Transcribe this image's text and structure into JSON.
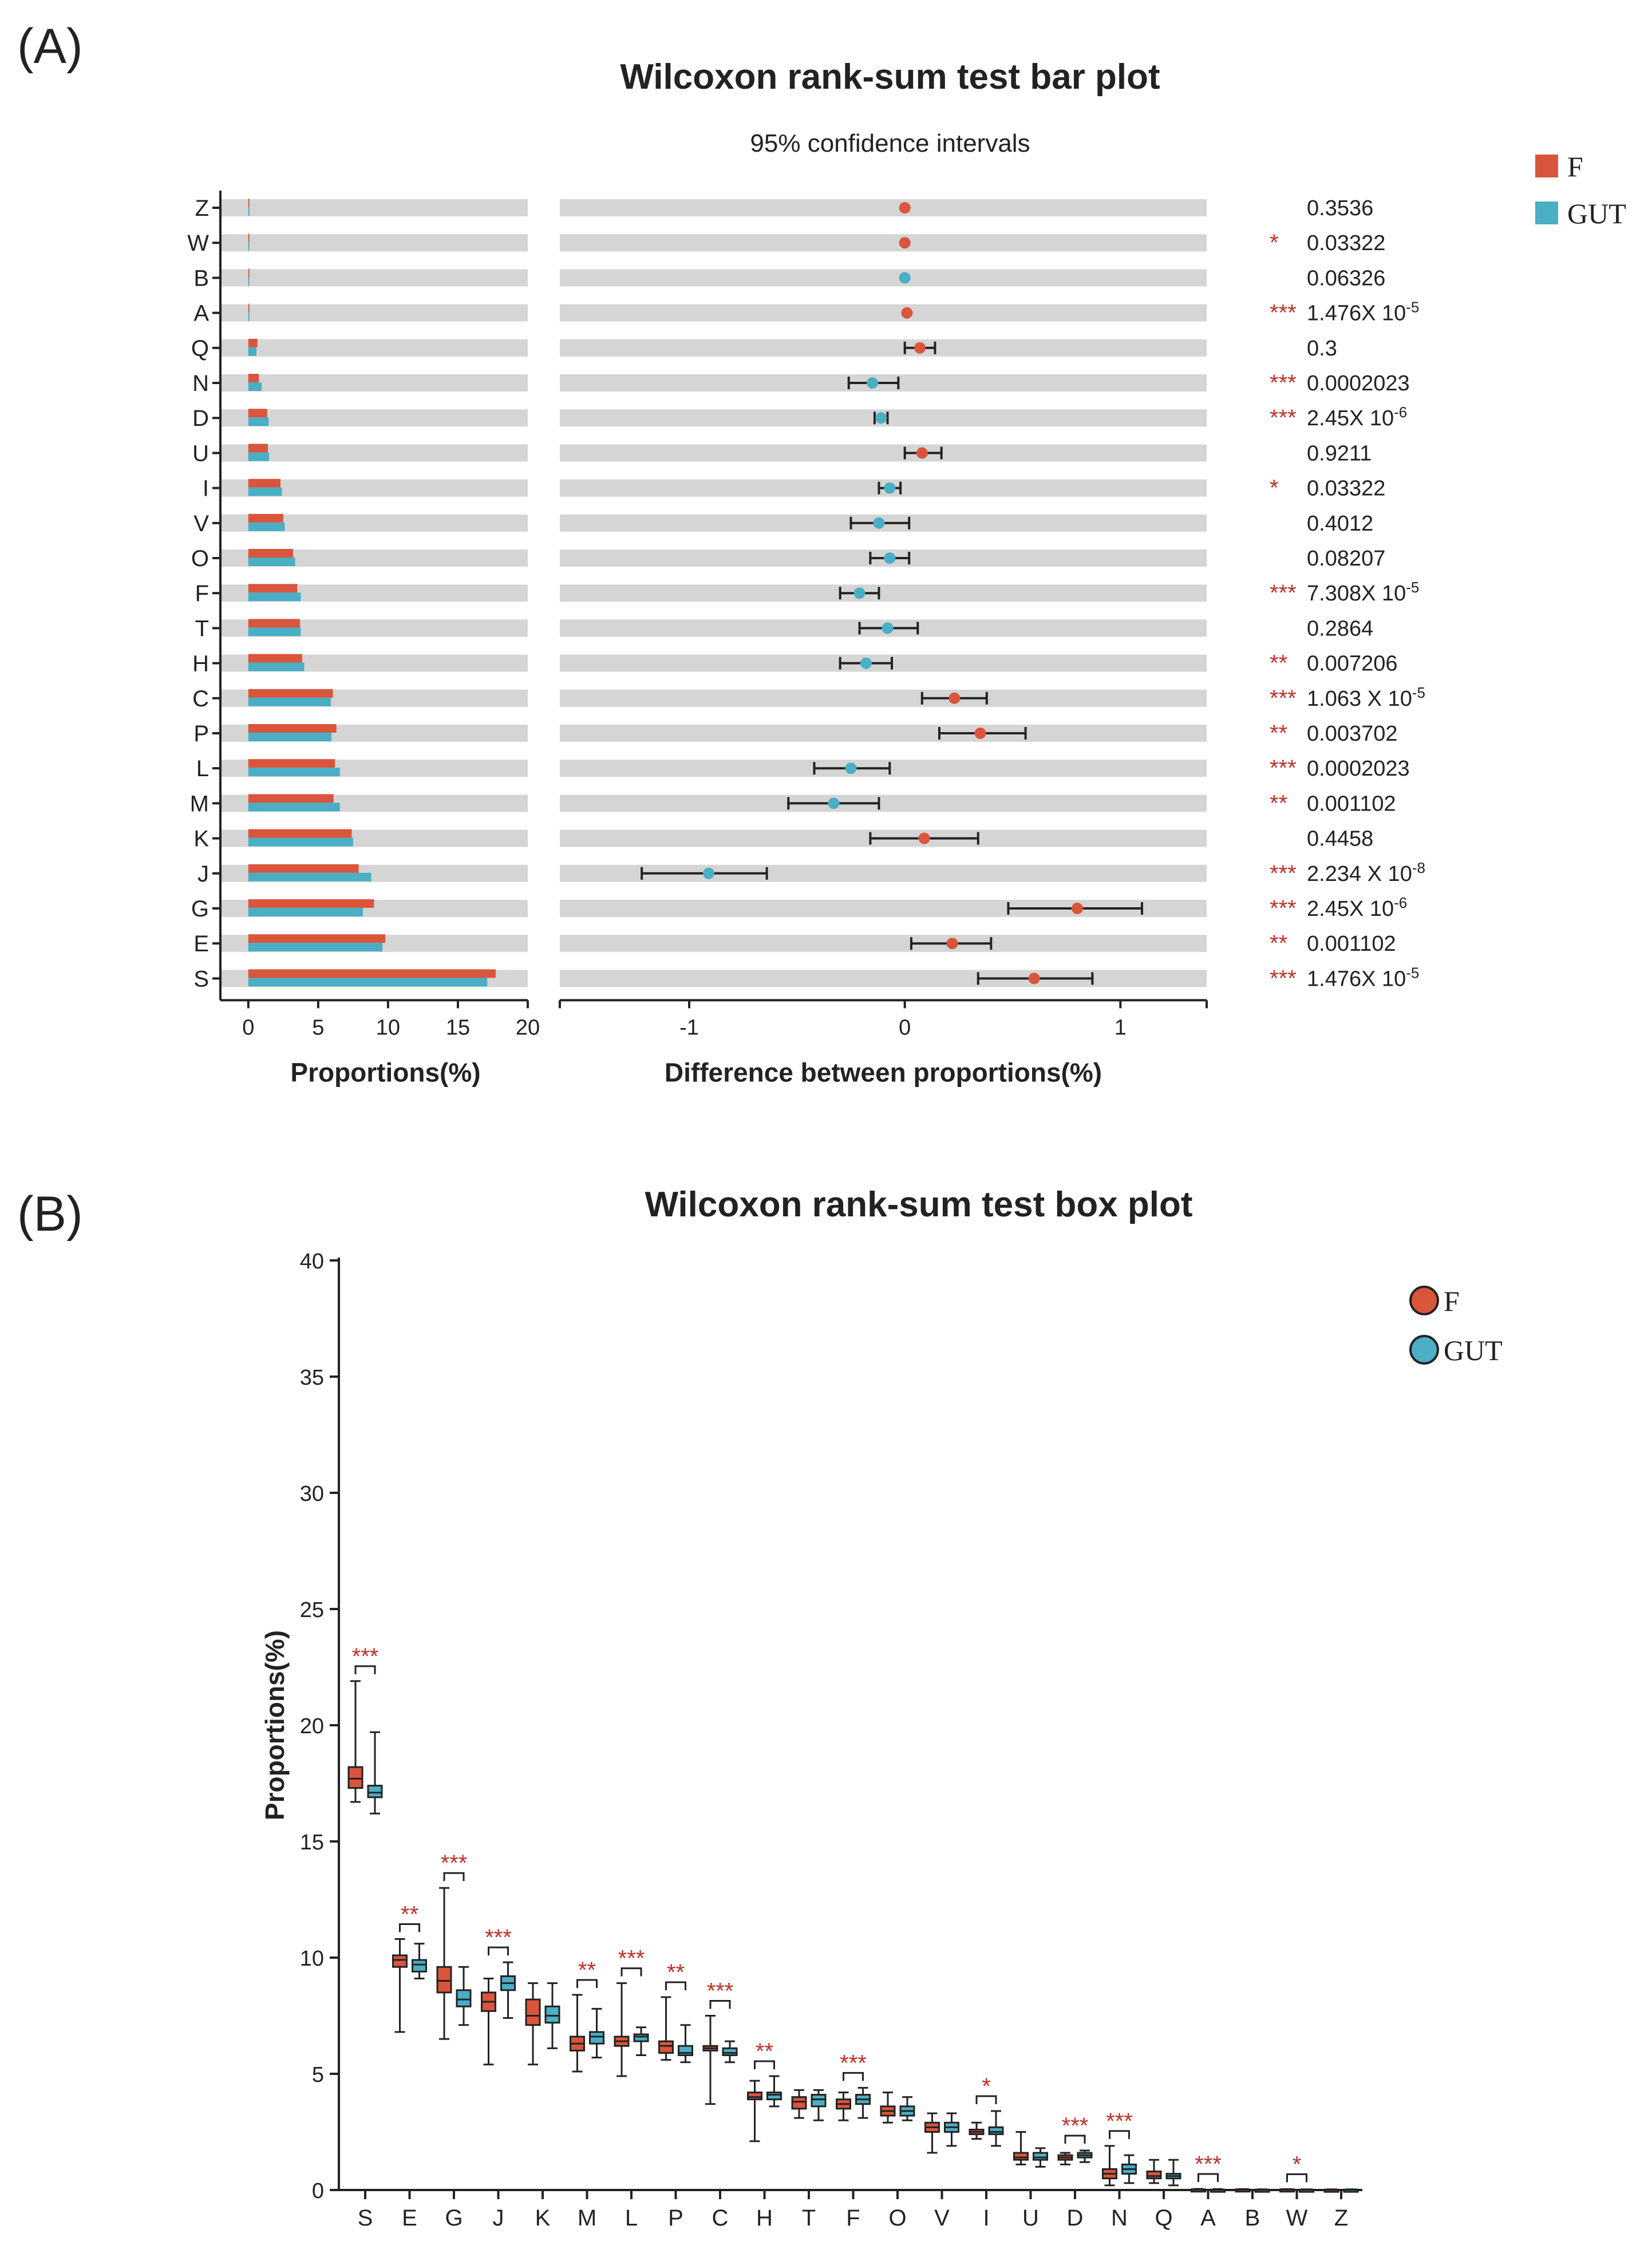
{
  "colors": {
    "F": "#d9553c",
    "GUT": "#4aaec4",
    "track": "#d5d5d5",
    "star": "#c0302a"
  },
  "panelA": {
    "label": "(A)",
    "title": "Wilcoxon rank-sum test bar plot",
    "subtitle": "95% confidence intervals",
    "legend": [
      "F",
      "GUT"
    ]
  },
  "panelB": {
    "label": "(B)",
    "title": "Wilcoxon rank-sum test box plot",
    "legend": [
      "F",
      "GUT"
    ]
  },
  "chart_data": [
    {
      "type": "bar",
      "xlabel": "Proportions(%)",
      "xlim": [
        -2,
        20
      ],
      "xticks": [
        0,
        5,
        10,
        15,
        20
      ],
      "categories": [
        "Z",
        "W",
        "B",
        "A",
        "Q",
        "N",
        "D",
        "U",
        "I",
        "V",
        "O",
        "F",
        "T",
        "H",
        "C",
        "P",
        "L",
        "M",
        "K",
        "J",
        "G",
        "E",
        "S"
      ],
      "series": [
        {
          "name": "F",
          "values": [
            0.02,
            0.03,
            0.05,
            0.06,
            0.65,
            0.75,
            1.35,
            1.4,
            2.3,
            2.5,
            3.2,
            3.5,
            3.7,
            3.85,
            6.05,
            6.3,
            6.2,
            6.1,
            7.4,
            7.9,
            9.0,
            9.8,
            17.7
          ]
        },
        {
          "name": "GUT",
          "values": [
            0.01,
            0.02,
            0.04,
            0.04,
            0.58,
            0.95,
            1.45,
            1.48,
            2.4,
            2.6,
            3.35,
            3.75,
            3.75,
            4.0,
            5.9,
            5.95,
            6.55,
            6.55,
            7.5,
            8.8,
            8.2,
            9.6,
            17.1
          ]
        }
      ]
    },
    {
      "type": "scatter",
      "xlabel": "Difference between proportions(%)",
      "xlim": [
        -1.6,
        1.4
      ],
      "xticks": [
        -1,
        0,
        1
      ],
      "categories": [
        "Z",
        "W",
        "B",
        "A",
        "Q",
        "N",
        "D",
        "U",
        "I",
        "V",
        "O",
        "F",
        "T",
        "H",
        "C",
        "P",
        "L",
        "M",
        "K",
        "J",
        "G",
        "E",
        "S"
      ],
      "points": [
        {
          "d": 0.0,
          "lo": 0.0,
          "hi": 0.0,
          "g": "F"
        },
        {
          "d": 0.0,
          "lo": 0.0,
          "hi": 0.0,
          "g": "F"
        },
        {
          "d": 0.0,
          "lo": 0.0,
          "hi": 0.0,
          "g": "GUT"
        },
        {
          "d": 0.01,
          "lo": 0.01,
          "hi": 0.01,
          "g": "F"
        },
        {
          "d": 0.07,
          "lo": 0.0,
          "hi": 0.14,
          "g": "F"
        },
        {
          "d": -0.15,
          "lo": -0.26,
          "hi": -0.03,
          "g": "GUT"
        },
        {
          "d": -0.11,
          "lo": -0.14,
          "hi": -0.08,
          "g": "GUT"
        },
        {
          "d": 0.08,
          "lo": 0.0,
          "hi": 0.17,
          "g": "F"
        },
        {
          "d": -0.07,
          "lo": -0.12,
          "hi": -0.02,
          "g": "GUT"
        },
        {
          "d": -0.12,
          "lo": -0.25,
          "hi": 0.02,
          "g": "GUT"
        },
        {
          "d": -0.07,
          "lo": -0.16,
          "hi": 0.02,
          "g": "GUT"
        },
        {
          "d": -0.21,
          "lo": -0.3,
          "hi": -0.12,
          "g": "GUT"
        },
        {
          "d": -0.08,
          "lo": -0.21,
          "hi": 0.06,
          "g": "GUT"
        },
        {
          "d": -0.18,
          "lo": -0.3,
          "hi": -0.06,
          "g": "GUT"
        },
        {
          "d": 0.23,
          "lo": 0.08,
          "hi": 0.38,
          "g": "F"
        },
        {
          "d": 0.35,
          "lo": 0.16,
          "hi": 0.56,
          "g": "F"
        },
        {
          "d": -0.25,
          "lo": -0.42,
          "hi": -0.07,
          "g": "GUT"
        },
        {
          "d": -0.33,
          "lo": -0.54,
          "hi": -0.12,
          "g": "GUT"
        },
        {
          "d": 0.09,
          "lo": -0.16,
          "hi": 0.34,
          "g": "F"
        },
        {
          "d": -0.91,
          "lo": -1.22,
          "hi": -0.64,
          "g": "GUT"
        },
        {
          "d": 0.8,
          "lo": 0.48,
          "hi": 1.1,
          "g": "F"
        },
        {
          "d": 0.22,
          "lo": 0.03,
          "hi": 0.4,
          "g": "F"
        },
        {
          "d": 0.6,
          "lo": 0.34,
          "hi": 0.87,
          "g": "F"
        }
      ],
      "pvalues": [
        "0.3536",
        "0.03322",
        "0.06326",
        "1.476X 10-5",
        "0.3",
        "0.0002023",
        "2.45X 10-6",
        "0.9211",
        "0.03322",
        "0.4012",
        "0.08207",
        "7.308X 10-5",
        "0.2864",
        "0.007206",
        "1.063 X 10-5",
        "0.003702",
        "0.0002023",
        "0.001102",
        "0.4458",
        "2.234 X 10-8",
        "2.45X 10-6",
        "0.001102",
        "1.476X 10-5"
      ],
      "stars": [
        "",
        "*",
        "",
        "***",
        "",
        "***",
        "***",
        "",
        "*",
        "",
        "",
        "***",
        "",
        "**",
        "***",
        "**",
        "***",
        "**",
        "",
        "***",
        "***",
        "**",
        "***"
      ]
    },
    {
      "type": "box",
      "ylabel": "Proportions(%)",
      "ylim": [
        0,
        40
      ],
      "yticks": [
        0,
        5,
        10,
        15,
        20,
        25,
        30,
        35,
        40
      ],
      "categories": [
        "S",
        "E",
        "G",
        "J",
        "K",
        "M",
        "L",
        "P",
        "C",
        "H",
        "T",
        "F",
        "O",
        "V",
        "I",
        "U",
        "D",
        "N",
        "Q",
        "A",
        "B",
        "W",
        "Z"
      ],
      "stars": [
        "***",
        "**",
        "***",
        "***",
        "",
        "**",
        "***",
        "**",
        "***",
        "**",
        "",
        "***",
        "",
        "",
        "*",
        "",
        "***",
        "***",
        "",
        "***",
        "",
        "*",
        ""
      ],
      "series": [
        {
          "name": "F",
          "boxes": [
            [
              16.7,
              17.3,
              17.7,
              18.2,
              21.9
            ],
            [
              6.8,
              9.6,
              9.9,
              10.1,
              10.8
            ],
            [
              6.5,
              8.5,
              9.0,
              9.6,
              13.0
            ],
            [
              5.4,
              7.7,
              8.1,
              8.5,
              9.1
            ],
            [
              5.4,
              7.1,
              7.5,
              8.2,
              8.9
            ],
            [
              5.1,
              6.0,
              6.3,
              6.6,
              8.4
            ],
            [
              4.9,
              6.2,
              6.4,
              6.6,
              8.9
            ],
            [
              5.6,
              5.9,
              6.2,
              6.4,
              8.3
            ],
            [
              3.7,
              6.0,
              6.1,
              6.2,
              7.5
            ],
            [
              2.1,
              3.9,
              4.0,
              4.2,
              4.7
            ],
            [
              3.1,
              3.5,
              3.8,
              4.0,
              4.3
            ],
            [
              3.0,
              3.5,
              3.7,
              3.9,
              4.2
            ],
            [
              2.9,
              3.2,
              3.4,
              3.6,
              4.2
            ],
            [
              1.6,
              2.5,
              2.7,
              2.9,
              3.3
            ],
            [
              2.2,
              2.4,
              2.5,
              2.6,
              2.9
            ],
            [
              1.1,
              1.3,
              1.4,
              1.6,
              2.5
            ],
            [
              1.1,
              1.3,
              1.4,
              1.5,
              1.6
            ],
            [
              0.2,
              0.5,
              0.7,
              0.9,
              1.9
            ],
            [
              0.3,
              0.5,
              0.6,
              0.8,
              1.3
            ],
            [
              0.0,
              0.01,
              0.02,
              0.03,
              0.05
            ],
            [
              0.0,
              0.01,
              0.02,
              0.03,
              0.04
            ],
            [
              0.0,
              0.01,
              0.02,
              0.03,
              0.04
            ],
            [
              0.0,
              0.01,
              0.01,
              0.02,
              0.03
            ]
          ]
        },
        {
          "name": "GUT",
          "boxes": [
            [
              16.2,
              16.9,
              17.1,
              17.4,
              19.7
            ],
            [
              9.1,
              9.4,
              9.7,
              9.9,
              10.6
            ],
            [
              7.1,
              7.9,
              8.2,
              8.6,
              9.6
            ],
            [
              7.4,
              8.6,
              8.9,
              9.2,
              9.8
            ],
            [
              6.1,
              7.2,
              7.5,
              7.9,
              8.9
            ],
            [
              5.7,
              6.3,
              6.6,
              6.8,
              7.8
            ],
            [
              5.8,
              6.4,
              6.6,
              6.7,
              7.0
            ],
            [
              5.5,
              5.8,
              5.9,
              6.2,
              7.1
            ],
            [
              5.5,
              5.8,
              5.9,
              6.1,
              6.4
            ],
            [
              3.6,
              3.9,
              4.1,
              4.2,
              4.9
            ],
            [
              3.0,
              3.6,
              3.9,
              4.1,
              4.3
            ],
            [
              3.1,
              3.7,
              3.9,
              4.1,
              4.4
            ],
            [
              3.0,
              3.2,
              3.4,
              3.6,
              4.0
            ],
            [
              1.9,
              2.5,
              2.7,
              2.9,
              3.3
            ],
            [
              1.9,
              2.4,
              2.5,
              2.7,
              3.4
            ],
            [
              1.0,
              1.3,
              1.4,
              1.6,
              1.8
            ],
            [
              1.2,
              1.4,
              1.5,
              1.6,
              1.7
            ],
            [
              0.3,
              0.7,
              0.9,
              1.1,
              1.5
            ],
            [
              0.2,
              0.5,
              0.6,
              0.7,
              1.3
            ],
            [
              0.0,
              0.01,
              0.01,
              0.02,
              0.04
            ],
            [
              0.0,
              0.01,
              0.01,
              0.02,
              0.03
            ],
            [
              0.0,
              0.01,
              0.01,
              0.02,
              0.03
            ],
            [
              0.0,
              0.01,
              0.01,
              0.02,
              0.03
            ]
          ]
        }
      ]
    }
  ]
}
